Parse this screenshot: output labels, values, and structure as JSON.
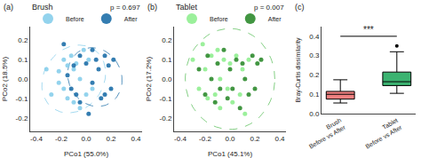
{
  "chart_data": [
    {
      "type": "scatter",
      "title": "Brush",
      "xlabel": "PCo1 (55.0%)",
      "ylabel": "PCo2 (18.5%)",
      "series": [
        {
          "name": "Before",
          "color": "#87CEEB",
          "x": [
            -0.32,
            -0.28,
            -0.22,
            -0.22,
            -0.18,
            -0.18,
            -0.15,
            -0.15,
            -0.12,
            -0.1,
            -0.1,
            -0.08,
            -0.05,
            -0.05,
            -0.02,
            0.0,
            0.02,
            0.05
          ],
          "values": [
            0.05,
            -0.08,
            0.04,
            -0.02,
            0.1,
            -0.05,
            0.07,
            -0.1,
            0.12,
            0.05,
            -0.12,
            0.08,
            0.0,
            -0.15,
            0.15,
            -0.08,
            0.1,
            -0.05
          ]
        },
        {
          "name": "After",
          "color": "#1E6FA8",
          "x": [
            -0.18,
            -0.15,
            -0.12,
            -0.1,
            -0.08,
            -0.05,
            -0.05,
            0.0,
            0.02,
            0.05,
            0.05,
            0.08,
            0.1,
            0.12,
            0.15,
            0.15,
            0.18,
            0.2,
            0.22
          ],
          "values": [
            0.18,
            0.02,
            -0.05,
            0.07,
            -0.08,
            0.12,
            -0.12,
            0.08,
            -0.18,
            0.15,
            -0.02,
            0.1,
            0.05,
            -0.1,
            0.12,
            -0.08,
            0.07,
            -0.05,
            0.1
          ]
        }
      ],
      "ellipses": [
        {
          "cx": -0.1,
          "cy": 0.0,
          "rx": 0.26,
          "ry": 0.17,
          "angle": 12,
          "color": "#87CEEB"
        },
        {
          "cx": 0.07,
          "cy": 0.01,
          "rx": 0.22,
          "ry": 0.15,
          "angle": -8,
          "color": "#1E6FA8"
        }
      ],
      "xlim": [
        -0.45,
        0.45
      ],
      "ylim": [
        -0.27,
        0.27
      ],
      "xticks": [
        -0.4,
        -0.2,
        {
          "value": 0,
          "label": "0.0"
        },
        0.2,
        0.4
      ],
      "yticks": [
        -0.2,
        -0.1,
        {
          "value": 0,
          "label": "0.0"
        },
        0.1,
        0.2
      ],
      "grid": false,
      "legend": "upper left",
      "annotations": [
        {
          "text": "(a)"
        },
        {
          "text": "p = 0.697"
        }
      ]
    },
    {
      "type": "scatter",
      "title": "Tablet",
      "xlabel": "PCo1 (45.1%)",
      "ylabel": "PCo2 (17.2%)",
      "series": [
        {
          "name": "Before",
          "color": "#90EE90",
          "x": [
            -0.3,
            -0.25,
            -0.22,
            -0.2,
            -0.18,
            -0.15,
            -0.12,
            -0.1,
            -0.08,
            -0.08,
            -0.05,
            -0.02,
            0.0,
            0.02,
            0.05,
            0.08,
            0.1,
            0.12,
            0.15
          ],
          "values": [
            0.1,
            -0.05,
            0.18,
            0.05,
            -0.1,
            0.12,
            -0.08,
            0.15,
            0.0,
            -0.15,
            0.1,
            -0.05,
            0.08,
            -0.12,
            0.12,
            -0.08,
            0.05,
            -0.18,
            0.1
          ]
        },
        {
          "name": "After",
          "color": "#2E8B2E",
          "x": [
            -0.25,
            -0.2,
            -0.18,
            -0.15,
            -0.12,
            -0.1,
            -0.08,
            -0.05,
            -0.02,
            0.0,
            0.02,
            0.05,
            0.08,
            0.1,
            0.12,
            0.15,
            0.18,
            0.2,
            0.22,
            0.25
          ],
          "values": [
            0.05,
            -0.08,
            0.12,
            0.0,
            -0.12,
            0.08,
            -0.05,
            0.15,
            -0.1,
            0.05,
            -0.05,
            0.1,
            -0.15,
            0.08,
            0.0,
            -0.08,
            0.12,
            -0.05,
            0.08,
            0.1
          ]
        }
      ],
      "ellipses": [
        {
          "cx": 0.0,
          "cy": 0.0,
          "rx": 0.36,
          "ry": 0.26,
          "angle": 0,
          "color": "#5BBF5B"
        }
      ],
      "xlim": [
        -0.45,
        0.45
      ],
      "ylim": [
        -0.27,
        0.27
      ],
      "xticks": [
        -0.4,
        -0.2,
        {
          "value": 0,
          "label": "0.0"
        },
        0.2,
        0.4
      ],
      "yticks": [
        -0.2,
        -0.1,
        {
          "value": 0,
          "label": "0.0"
        },
        0.1,
        0.2
      ],
      "grid": false,
      "legend": "upper left",
      "annotations": [
        {
          "text": "(b)"
        },
        {
          "text": "p = 0.007"
        }
      ]
    },
    {
      "type": "box",
      "categories": [
        "Brush\nBefore vs After",
        "Tablet\nBefore vs After"
      ],
      "boxes": [
        {
          "whislo": 0.055,
          "q1": 0.075,
          "med": 0.1,
          "q3": 0.115,
          "whishi": 0.175,
          "fliers": []
        },
        {
          "whislo": 0.105,
          "q1": 0.145,
          "med": 0.165,
          "q3": 0.215,
          "whishi": 0.32,
          "fliers": [
            0.35
          ]
        }
      ],
      "colors": [
        "#F08080",
        "#3CB371"
      ],
      "ylabel": "Bray-Curtis dissimilarity",
      "ylim": [
        0.0,
        0.45
      ],
      "yticks": [
        {
          "value": 0.0,
          "label": "0.0"
        },
        0.1,
        0.2,
        0.3,
        0.4
      ],
      "grid": false,
      "annotations": [
        {
          "text": "(c)"
        },
        {
          "text": "***",
          "y": 0.4
        }
      ]
    }
  ]
}
